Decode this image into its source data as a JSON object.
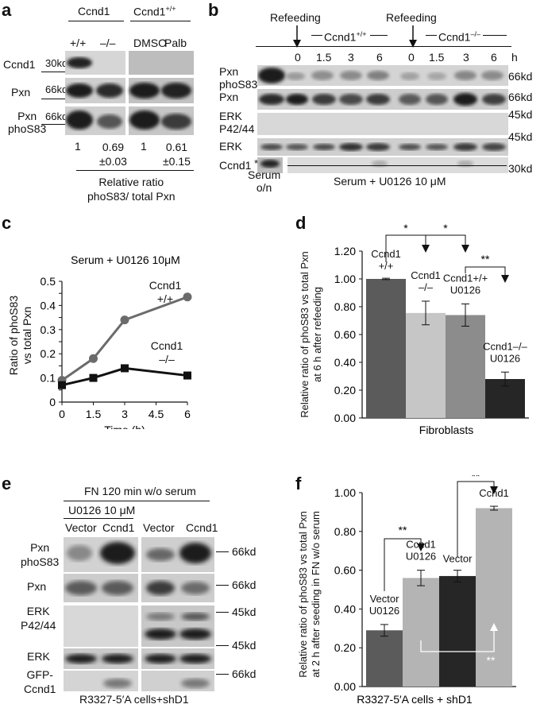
{
  "panel_labels": {
    "a": "a",
    "b": "b",
    "c": "c",
    "d": "d",
    "e": "e",
    "f": "f"
  },
  "colors": {
    "dark": "#3a3a3a",
    "mid": "#8c8c8c",
    "light": "#c4c4c4",
    "black": "#1e1e1e",
    "blot_bg": "#cfcfcf"
  },
  "panel_a": {
    "group1": "Ccnd1",
    "group2": "Ccnd1",
    "group2_sup": "+/+",
    "lanes": [
      "+/+",
      "–/–",
      "DMSO",
      "Palb"
    ],
    "rows": [
      "Ccnd1",
      "Pxn",
      "Pxn\nphoS83"
    ],
    "markers": [
      "30kd",
      "66kd",
      "66kd"
    ],
    "ratios": [
      "1",
      "0.69\n±0.03",
      "1",
      "0.61\n±0.15"
    ],
    "caption": "Relative ratio\nphoS83/ total Pxn"
  },
  "panel_b": {
    "refeeding1": "Refeeding",
    "refeeding2": "Refeeding",
    "group1": "Ccnd1",
    "group1_sup": "+/+",
    "group2": "Ccnd1",
    "group2_sup": "–/–",
    "times": [
      "0",
      "1.5",
      "3",
      "6",
      "0",
      "1.5",
      "3",
      "6"
    ],
    "h": "h",
    "rows": [
      "Pxn\nphoS83",
      "Pxn",
      "ERK\nP42/44",
      "ERK",
      "Ccnd1"
    ],
    "markers": [
      "66kd",
      "66kd",
      "45kd",
      "45kd",
      "30kd"
    ],
    "serum_on": "Serum\no/n",
    "star": "*",
    "caption": "Serum + U0126 10 μM"
  },
  "panel_c": {
    "title": "Serum + U0126 10μM",
    "ylabel": "Ratio of phoS83\nvs total Pxn",
    "xlabel": "Time (h)",
    "series_labels": [
      "Ccnd1\n+/+",
      "Ccnd1\n–/–"
    ]
  },
  "panel_d": {
    "ylabel": "Relative ratio of phoS83 vs total Pxn\nat 6 h after refeeding",
    "xlabel": "Fibroblasts",
    "bar_labels": [
      "Ccnd1\n+/+",
      "Ccnd1\n–/–",
      "Ccnd1+/+\nU0126",
      "Ccnd1–/–\nU0126"
    ],
    "sig": [
      "*",
      "*",
      "**"
    ]
  },
  "panel_e": {
    "header": "FN 120 min w/o serum",
    "subheader": "U0126 10 μM",
    "lanes": [
      "Vector",
      "Ccnd1",
      "Vector",
      "Ccnd1"
    ],
    "rows": [
      "Pxn\nphoS83",
      "Pxn",
      "ERK\nP42/44",
      "ERK",
      "GFP-\nCcnd1"
    ],
    "markers": [
      "66kd",
      "66kd",
      "45kd",
      "45kd",
      "66kd"
    ],
    "caption": "R3327-5′A cells+shD1"
  },
  "panel_f": {
    "ylabel": "Relative ratio of phoS83 vs total Pxn\nat 2 h after seeding in FN w/o serum",
    "xlabel": "R3327-5′A cells + shD1",
    "bar_labels": [
      "Vector\nU0126",
      "Ccnd1\nU0126",
      "Vector",
      "Ccnd1"
    ],
    "sig": [
      "**",
      "**",
      "**"
    ]
  },
  "chart_data": [
    {
      "type": "line",
      "title": "Serum + U0126 10μM",
      "xlabel": "Time (h)",
      "ylabel": "Ratio of phoS83 vs total Pxn",
      "x": [
        0,
        1.5,
        3,
        6
      ],
      "xticks": [
        "0",
        "1.5",
        "3",
        "4.5",
        "6"
      ],
      "yticks": [
        "0",
        "0.05",
        "0.1",
        "0.15",
        "0.2",
        "0.25",
        "0.3",
        "0.35",
        "0.4",
        "0.45",
        "0.5"
      ],
      "xlim": [
        0,
        6
      ],
      "ylim": [
        0,
        0.5
      ],
      "grid": false,
      "series": [
        {
          "name": "Ccnd1 +/+",
          "values": [
            0.09,
            0.18,
            0.34,
            0.435
          ],
          "color": "#6b6b6b",
          "marker": "circle"
        },
        {
          "name": "Ccnd1 –/–",
          "values": [
            0.07,
            0.1,
            0.14,
            0.11
          ],
          "color": "#111111",
          "marker": "square"
        }
      ]
    },
    {
      "type": "bar",
      "xlabel": "Fibroblasts",
      "ylabel": "Relative ratio of phoS83 vs total Pxn at 6 h after refeeding",
      "categories": [
        "Ccnd1 +/+",
        "Ccnd1 –/–",
        "Ccnd1+/+ U0126",
        "Ccnd1–/– U0126"
      ],
      "values": [
        1.0,
        0.755,
        0.74,
        0.28
      ],
      "errors": [
        0.005,
        0.085,
        0.08,
        0.05
      ],
      "colors": [
        "#5b5b5b",
        "#c6c6c6",
        "#8c8c8c",
        "#262626"
      ],
      "yticks": [
        "0.00",
        "0.20",
        "0.40",
        "0.60",
        "0.80",
        "1.00",
        "1.20"
      ],
      "ylim": [
        0,
        1.2
      ],
      "grid": false
    },
    {
      "type": "bar",
      "xlabel": "R3327-5′A cells + shD1",
      "ylabel": "Relative ratio of phoS83 vs total Pxn at 2 h after seeding in FN w/o serum",
      "categories": [
        "Vector U0126",
        "Ccnd1 U0126",
        "Vector",
        "Ccnd1"
      ],
      "values": [
        0.29,
        0.56,
        0.57,
        0.92
      ],
      "errors": [
        0.03,
        0.04,
        0.03,
        0.01
      ],
      "colors": [
        "#5b5b5b",
        "#b4b4b4",
        "#262626",
        "#b4b4b4"
      ],
      "yticks": [
        "0.00",
        "0.20",
        "0.40",
        "0.60",
        "0.80",
        "1.00"
      ],
      "ylim": [
        0,
        1.0
      ],
      "grid": false
    }
  ]
}
